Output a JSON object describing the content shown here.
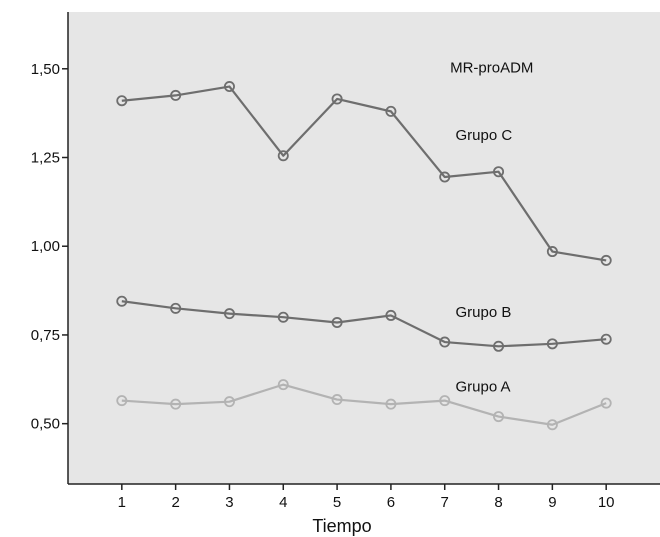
{
  "chart_data": {
    "type": "line",
    "title": "",
    "xlabel": "Tiempo",
    "ylabel": "",
    "x": [
      1,
      2,
      3,
      4,
      5,
      6,
      7,
      8,
      9,
      10
    ],
    "x_tick_labels": [
      "1",
      "2",
      "3",
      "4",
      "5",
      "6",
      "7",
      "8",
      "9",
      "10"
    ],
    "yticks": [
      0.5,
      0.75,
      1.0,
      1.25,
      1.5
    ],
    "y_tick_labels": [
      "0,50",
      "0,75",
      "1,00",
      "1,25",
      "1,50"
    ],
    "xlim": [
      0,
      11
    ],
    "ylim": [
      0.33,
      1.66
    ],
    "grid": false,
    "legend": "none",
    "annotations": [
      {
        "text": "MR-proADM",
        "x": 7.1,
        "y": 1.49
      },
      {
        "text": "Grupo C",
        "x": 7.2,
        "y": 1.3
      },
      {
        "text": "Grupo B",
        "x": 7.2,
        "y": 0.8
      },
      {
        "text": "Grupo A",
        "x": 7.2,
        "y": 0.59
      }
    ],
    "series": [
      {
        "values": [
          1.41,
          1.425,
          1.45,
          1.255,
          1.415,
          1.38,
          1.195,
          1.21,
          0.985,
          0.96
        ],
        "color": "#6e6e6e"
      },
      {
        "values": [
          0.845,
          0.825,
          0.81,
          0.8,
          0.785,
          0.805,
          0.73,
          0.718,
          0.725,
          0.738
        ],
        "color": "#6e6e6e"
      },
      {
        "values": [
          0.565,
          0.555,
          0.562,
          0.61,
          0.568,
          0.555,
          0.565,
          0.52,
          0.497,
          0.558
        ],
        "color": "#b3b3b3"
      }
    ]
  },
  "colors": {
    "plot_background": "#e6e6e6",
    "axis": "#222222"
  }
}
